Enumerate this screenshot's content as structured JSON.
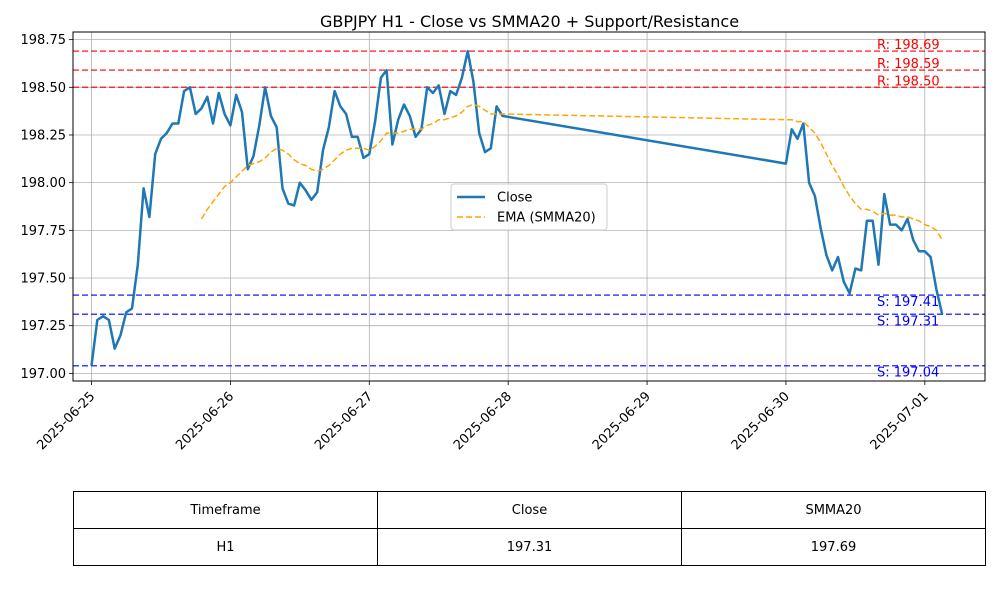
{
  "chart_data": {
    "type": "line",
    "title": "GBPJPY H1 - Close vs SMMA20 + Support/Resistance",
    "xlabel": "",
    "ylabel": "",
    "ylim": [
      196.96,
      198.79
    ],
    "xlim": [
      "2025-06-24T20:48",
      "2025-07-01T10:24"
    ],
    "x_ticks": [
      "2025-06-25",
      "2025-06-26",
      "2025-06-27",
      "2025-06-28",
      "2025-06-29",
      "2025-06-30",
      "2025-07-01"
    ],
    "y_ticks": [
      "197.00",
      "197.25",
      "197.50",
      "197.75",
      "198.00",
      "198.25",
      "198.50",
      "198.75"
    ],
    "grid": true,
    "legend_position": "center-right",
    "colors": {
      "close": "#1f77b4",
      "smma": "#ffa500",
      "resistance": "#ff0000",
      "support": "#0000ff"
    },
    "series": [
      {
        "name": "Close",
        "style": "solid",
        "points": [
          [
            "2025-06-25T00:00",
            197.04
          ],
          [
            "2025-06-25T01:00",
            197.28
          ],
          [
            "2025-06-25T02:00",
            197.3
          ],
          [
            "2025-06-25T03:00",
            197.28
          ],
          [
            "2025-06-25T04:00",
            197.13
          ],
          [
            "2025-06-25T05:00",
            197.2
          ],
          [
            "2025-06-25T06:00",
            197.32
          ],
          [
            "2025-06-25T07:00",
            197.34
          ],
          [
            "2025-06-25T08:00",
            197.57
          ],
          [
            "2025-06-25T09:00",
            197.97
          ],
          [
            "2025-06-25T10:00",
            197.82
          ],
          [
            "2025-06-25T11:00",
            198.15
          ],
          [
            "2025-06-25T12:00",
            198.23
          ],
          [
            "2025-06-25T13:00",
            198.26
          ],
          [
            "2025-06-25T14:00",
            198.31
          ],
          [
            "2025-06-25T15:00",
            198.31
          ],
          [
            "2025-06-25T16:00",
            198.48
          ],
          [
            "2025-06-25T17:00",
            198.5
          ],
          [
            "2025-06-25T18:00",
            198.36
          ],
          [
            "2025-06-25T19:00",
            198.39
          ],
          [
            "2025-06-25T20:00",
            198.45
          ],
          [
            "2025-06-25T21:00",
            198.31
          ],
          [
            "2025-06-25T22:00",
            198.47
          ],
          [
            "2025-06-25T23:00",
            198.36
          ],
          [
            "2025-06-26T00:00",
            198.3
          ],
          [
            "2025-06-26T01:00",
            198.46
          ],
          [
            "2025-06-26T02:00",
            198.37
          ],
          [
            "2025-06-26T03:00",
            198.07
          ],
          [
            "2025-06-26T04:00",
            198.14
          ],
          [
            "2025-06-26T05:00",
            198.3
          ],
          [
            "2025-06-26T06:00",
            198.5
          ],
          [
            "2025-06-26T07:00",
            198.35
          ],
          [
            "2025-06-26T08:00",
            198.29
          ],
          [
            "2025-06-26T09:00",
            197.97
          ],
          [
            "2025-06-26T10:00",
            197.89
          ],
          [
            "2025-06-26T11:00",
            197.88
          ],
          [
            "2025-06-26T12:00",
            198.0
          ],
          [
            "2025-06-26T13:00",
            197.96
          ],
          [
            "2025-06-26T14:00",
            197.91
          ],
          [
            "2025-06-26T15:00",
            197.95
          ],
          [
            "2025-06-26T16:00",
            198.17
          ],
          [
            "2025-06-26T17:00",
            198.29
          ],
          [
            "2025-06-26T18:00",
            198.48
          ],
          [
            "2025-06-26T19:00",
            198.4
          ],
          [
            "2025-06-26T20:00",
            198.36
          ],
          [
            "2025-06-26T21:00",
            198.24
          ],
          [
            "2025-06-26T22:00",
            198.24
          ],
          [
            "2025-06-26T23:00",
            198.13
          ],
          [
            "2025-06-27T00:00",
            198.15
          ],
          [
            "2025-06-27T01:00",
            198.32
          ],
          [
            "2025-06-27T02:00",
            198.55
          ],
          [
            "2025-06-27T03:00",
            198.59
          ],
          [
            "2025-06-27T04:00",
            198.2
          ],
          [
            "2025-06-27T05:00",
            198.33
          ],
          [
            "2025-06-27T06:00",
            198.41
          ],
          [
            "2025-06-27T07:00",
            198.35
          ],
          [
            "2025-06-27T08:00",
            198.24
          ],
          [
            "2025-06-27T09:00",
            198.28
          ],
          [
            "2025-06-27T10:00",
            198.5
          ],
          [
            "2025-06-27T11:00",
            198.47
          ],
          [
            "2025-06-27T12:00",
            198.51
          ],
          [
            "2025-06-27T13:00",
            198.36
          ],
          [
            "2025-06-27T14:00",
            198.48
          ],
          [
            "2025-06-27T15:00",
            198.46
          ],
          [
            "2025-06-27T16:00",
            198.55
          ],
          [
            "2025-06-27T17:00",
            198.69
          ],
          [
            "2025-06-27T18:00",
            198.53
          ],
          [
            "2025-06-27T19:00",
            198.26
          ],
          [
            "2025-06-27T20:00",
            198.16
          ],
          [
            "2025-06-27T21:00",
            198.18
          ],
          [
            "2025-06-27T22:00",
            198.4
          ],
          [
            "2025-06-27T23:00",
            198.35
          ],
          [
            "2025-06-30T00:00",
            198.1
          ],
          [
            "2025-06-30T01:00",
            198.28
          ],
          [
            "2025-06-30T02:00",
            198.23
          ],
          [
            "2025-06-30T03:00",
            198.31
          ],
          [
            "2025-06-30T04:00",
            198.0
          ],
          [
            "2025-06-30T05:00",
            197.93
          ],
          [
            "2025-06-30T06:00",
            197.76
          ],
          [
            "2025-06-30T07:00",
            197.62
          ],
          [
            "2025-06-30T08:00",
            197.54
          ],
          [
            "2025-06-30T09:00",
            197.61
          ],
          [
            "2025-06-30T10:00",
            197.48
          ],
          [
            "2025-06-30T11:00",
            197.42
          ],
          [
            "2025-06-30T12:00",
            197.55
          ],
          [
            "2025-06-30T13:00",
            197.54
          ],
          [
            "2025-06-30T14:00",
            197.8
          ],
          [
            "2025-06-30T15:00",
            197.8
          ],
          [
            "2025-06-30T16:00",
            197.57
          ],
          [
            "2025-06-30T17:00",
            197.94
          ],
          [
            "2025-06-30T18:00",
            197.78
          ],
          [
            "2025-06-30T19:00",
            197.78
          ],
          [
            "2025-06-30T20:00",
            197.75
          ],
          [
            "2025-06-30T21:00",
            197.81
          ],
          [
            "2025-06-30T22:00",
            197.7
          ],
          [
            "2025-06-30T23:00",
            197.64
          ],
          [
            "2025-07-01T00:00",
            197.64
          ],
          [
            "2025-07-01T01:00",
            197.61
          ],
          [
            "2025-07-01T02:00",
            197.44
          ],
          [
            "2025-07-01T03:00",
            197.31
          ]
        ]
      },
      {
        "name": "EMA (SMMA20)",
        "style": "dashed",
        "points": [
          [
            "2025-06-25T19:00",
            197.81
          ],
          [
            "2025-06-25T20:00",
            197.86
          ],
          [
            "2025-06-25T21:00",
            197.9
          ],
          [
            "2025-06-25T22:00",
            197.94
          ],
          [
            "2025-06-25T23:00",
            197.98
          ],
          [
            "2025-06-26T00:00",
            198.0
          ],
          [
            "2025-06-26T01:00",
            198.03
          ],
          [
            "2025-06-26T02:00",
            198.06
          ],
          [
            "2025-06-26T03:00",
            198.09
          ],
          [
            "2025-06-26T04:00",
            198.1
          ],
          [
            "2025-06-26T05:00",
            198.11
          ],
          [
            "2025-06-26T06:00",
            198.13
          ],
          [
            "2025-06-26T07:00",
            198.16
          ],
          [
            "2025-06-26T08:00",
            198.18
          ],
          [
            "2025-06-26T09:00",
            198.17
          ],
          [
            "2025-06-26T10:00",
            198.15
          ],
          [
            "2025-06-26T11:00",
            198.12
          ],
          [
            "2025-06-26T12:00",
            198.1
          ],
          [
            "2025-06-26T13:00",
            198.09
          ],
          [
            "2025-06-26T14:00",
            198.07
          ],
          [
            "2025-06-26T15:00",
            198.06
          ],
          [
            "2025-06-26T16:00",
            198.07
          ],
          [
            "2025-06-26T17:00",
            198.09
          ],
          [
            "2025-06-26T18:00",
            198.12
          ],
          [
            "2025-06-26T19:00",
            198.15
          ],
          [
            "2025-06-26T20:00",
            198.17
          ],
          [
            "2025-06-26T21:00",
            198.18
          ],
          [
            "2025-06-26T22:00",
            198.18
          ],
          [
            "2025-06-26T23:00",
            198.18
          ],
          [
            "2025-06-27T00:00",
            198.17
          ],
          [
            "2025-06-27T01:00",
            198.19
          ],
          [
            "2025-06-27T02:00",
            198.22
          ],
          [
            "2025-06-27T03:00",
            198.26
          ],
          [
            "2025-06-27T04:00",
            198.26
          ],
          [
            "2025-06-27T05:00",
            198.26
          ],
          [
            "2025-06-27T06:00",
            198.27
          ],
          [
            "2025-06-27T07:00",
            198.28
          ],
          [
            "2025-06-27T08:00",
            198.28
          ],
          [
            "2025-06-27T09:00",
            198.28
          ],
          [
            "2025-06-27T10:00",
            198.3
          ],
          [
            "2025-06-27T11:00",
            198.31
          ],
          [
            "2025-06-27T12:00",
            198.33
          ],
          [
            "2025-06-27T13:00",
            198.33
          ],
          [
            "2025-06-27T14:00",
            198.34
          ],
          [
            "2025-06-27T15:00",
            198.35
          ],
          [
            "2025-06-27T16:00",
            198.37
          ],
          [
            "2025-06-27T17:00",
            198.4
          ],
          [
            "2025-06-27T18:00",
            198.41
          ],
          [
            "2025-06-27T19:00",
            198.4
          ],
          [
            "2025-06-27T20:00",
            198.38
          ],
          [
            "2025-06-27T21:00",
            198.36
          ],
          [
            "2025-06-27T22:00",
            198.36
          ],
          [
            "2025-06-27T23:00",
            198.36
          ],
          [
            "2025-06-30T00:00",
            198.33
          ],
          [
            "2025-06-30T01:00",
            198.33
          ],
          [
            "2025-06-30T02:00",
            198.32
          ],
          [
            "2025-06-30T03:00",
            198.32
          ],
          [
            "2025-06-30T04:00",
            198.29
          ],
          [
            "2025-06-30T05:00",
            198.26
          ],
          [
            "2025-06-30T06:00",
            198.21
          ],
          [
            "2025-06-30T07:00",
            198.15
          ],
          [
            "2025-06-30T08:00",
            198.09
          ],
          [
            "2025-06-30T09:00",
            198.04
          ],
          [
            "2025-06-30T10:00",
            197.98
          ],
          [
            "2025-06-30T11:00",
            197.93
          ],
          [
            "2025-06-30T12:00",
            197.89
          ],
          [
            "2025-06-30T13:00",
            197.86
          ],
          [
            "2025-06-30T14:00",
            197.86
          ],
          [
            "2025-06-30T15:00",
            197.85
          ],
          [
            "2025-06-30T16:00",
            197.83
          ],
          [
            "2025-06-30T17:00",
            197.84
          ],
          [
            "2025-06-30T18:00",
            197.83
          ],
          [
            "2025-06-30T19:00",
            197.83
          ],
          [
            "2025-06-30T20:00",
            197.82
          ],
          [
            "2025-06-30T21:00",
            197.82
          ],
          [
            "2025-06-30T22:00",
            197.81
          ],
          [
            "2025-06-30T23:00",
            197.8
          ],
          [
            "2025-07-01T00:00",
            197.78
          ],
          [
            "2025-07-01T01:00",
            197.77
          ],
          [
            "2025-07-01T02:00",
            197.75
          ],
          [
            "2025-07-01T03:00",
            197.7
          ]
        ]
      }
    ],
    "levels": [
      {
        "kind": "resistance",
        "value": 198.69,
        "label": "R: 198.69"
      },
      {
        "kind": "resistance",
        "value": 198.59,
        "label": "R: 198.59"
      },
      {
        "kind": "resistance",
        "value": 198.5,
        "label": "R: 198.50"
      },
      {
        "kind": "support",
        "value": 197.41,
        "label": "S: 197.41"
      },
      {
        "kind": "support",
        "value": 197.31,
        "label": "S: 197.31"
      },
      {
        "kind": "support",
        "value": 197.04,
        "label": "S: 197.04"
      }
    ]
  },
  "table": {
    "headers": [
      "Timeframe",
      "Close",
      "SMMA20"
    ],
    "rows": [
      [
        "H1",
        "197.31",
        "197.69"
      ]
    ]
  }
}
